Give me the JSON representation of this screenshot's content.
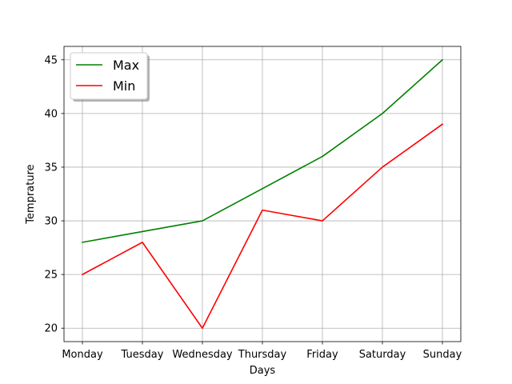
{
  "chart_data": {
    "type": "line",
    "title": "",
    "xlabel": "Days",
    "ylabel": "Temprature",
    "categories": [
      "Monday",
      "Tuesday",
      "Wednesday",
      "Thursday",
      "Friday",
      "Saturday",
      "Sunday"
    ],
    "series": [
      {
        "name": "Max",
        "color": "#008000",
        "values": [
          28,
          29,
          30,
          33,
          36,
          40,
          45
        ]
      },
      {
        "name": "Min",
        "color": "#ff0000",
        "values": [
          25,
          28,
          20,
          31,
          30,
          35,
          39
        ]
      }
    ],
    "yticks": [
      20,
      25,
      30,
      35,
      40,
      45
    ],
    "ylim": [
      18.75,
      46.25
    ],
    "grid": true,
    "legend": {
      "position": "top-left",
      "shadow": true
    }
  }
}
